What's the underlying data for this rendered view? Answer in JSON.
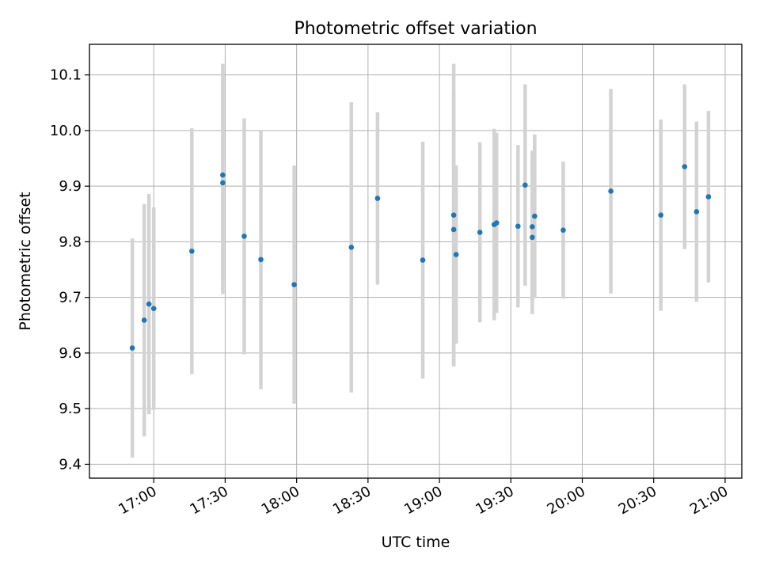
{
  "chart_data": {
    "type": "scatter",
    "title": "Photometric offset variation",
    "xlabel": "UTC time",
    "ylabel": "Photometric offset",
    "x_axis": "time",
    "xlim": [
      "16:33",
      "21:07"
    ],
    "ylim": [
      9.375,
      10.155
    ],
    "x_ticks": [
      "17:00",
      "17:30",
      "18:00",
      "18:30",
      "19:00",
      "19:30",
      "20:00",
      "20:30",
      "21:00"
    ],
    "y_ticks": [
      "9.4",
      "9.5",
      "9.6",
      "9.7",
      "9.8",
      "9.9",
      "10.0",
      "10.1"
    ],
    "grid": true,
    "marker_color": "#1f77b4",
    "errorbar_color": "#d3d3d3",
    "points": [
      {
        "x": "16:51",
        "y": 9.609,
        "err": 0.197
      },
      {
        "x": "16:56",
        "y": 9.659,
        "err": 0.209
      },
      {
        "x": "16:58",
        "y": 9.688,
        "err": 0.198
      },
      {
        "x": "17:00",
        "y": 9.68,
        "err": 0.182
      },
      {
        "x": "17:16",
        "y": 9.783,
        "err": 0.221
      },
      {
        "x": "17:29",
        "y": 9.92,
        "err": 0.2
      },
      {
        "x": "17:29",
        "y": 9.906,
        "err": 0.2
      },
      {
        "x": "17:38",
        "y": 9.81,
        "err": 0.212
      },
      {
        "x": "17:45",
        "y": 9.768,
        "err": 0.233
      },
      {
        "x": "17:59",
        "y": 9.723,
        "err": 0.214
      },
      {
        "x": "18:23",
        "y": 9.79,
        "err": 0.261
      },
      {
        "x": "18:34",
        "y": 9.878,
        "err": 0.155
      },
      {
        "x": "18:53",
        "y": 9.767,
        "err": 0.213
      },
      {
        "x": "19:06",
        "y": 9.848,
        "err": 0.272
      },
      {
        "x": "19:06",
        "y": 9.822,
        "err": 0.245
      },
      {
        "x": "19:07",
        "y": 9.777,
        "err": 0.16
      },
      {
        "x": "19:17",
        "y": 9.817,
        "err": 0.162
      },
      {
        "x": "19:23",
        "y": 9.831,
        "err": 0.172
      },
      {
        "x": "19:24",
        "y": 9.834,
        "err": 0.162
      },
      {
        "x": "19:33",
        "y": 9.828,
        "err": 0.146
      },
      {
        "x": "19:36",
        "y": 9.902,
        "err": 0.181
      },
      {
        "x": "19:39",
        "y": 9.808,
        "err": 0.138
      },
      {
        "x": "19:39",
        "y": 9.827,
        "err": 0.137
      },
      {
        "x": "19:40",
        "y": 9.846,
        "err": 0.147
      },
      {
        "x": "19:52",
        "y": 9.821,
        "err": 0.123
      },
      {
        "x": "20:12",
        "y": 9.891,
        "err": 0.184
      },
      {
        "x": "20:33",
        "y": 9.848,
        "err": 0.172
      },
      {
        "x": "20:43",
        "y": 9.935,
        "err": 0.148
      },
      {
        "x": "20:48",
        "y": 9.854,
        "err": 0.162
      },
      {
        "x": "20:53",
        "y": 9.881,
        "err": 0.154
      }
    ]
  }
}
